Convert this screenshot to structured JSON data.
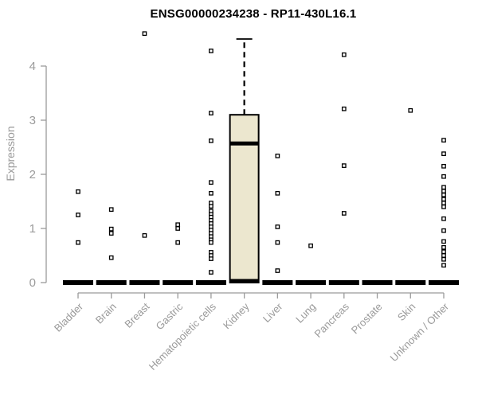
{
  "chart_data": {
    "type": "boxplot",
    "title": "ENSG00000234238 - RP11-430L16.1",
    "xlabel": "",
    "ylabel": "Expression",
    "ylim": [
      0,
      4.6
    ],
    "yticks": [
      0,
      1,
      2,
      3,
      4
    ],
    "categories": [
      "Bladder",
      "Brain",
      "Breast",
      "Gastric",
      "Hematopoietic cells",
      "Kidney",
      "Liver",
      "Lung",
      "Pancreas",
      "Prostate",
      "Skin",
      "Unknown / Other"
    ],
    "boxes": [
      {
        "category": "Bladder",
        "q1": 0,
        "median": 0,
        "q3": 0,
        "whisker_low": 0,
        "whisker_high": 0,
        "outliers": [
          1.68,
          1.25,
          0.74
        ]
      },
      {
        "category": "Brain",
        "q1": 0,
        "median": 0,
        "q3": 0,
        "whisker_low": 0,
        "whisker_high": 0,
        "outliers": [
          1.35,
          0.99,
          0.91,
          0.46
        ]
      },
      {
        "category": "Breast",
        "q1": 0,
        "median": 0,
        "q3": 0,
        "whisker_low": 0,
        "whisker_high": 0,
        "outliers": [
          4.6,
          0.87
        ]
      },
      {
        "category": "Gastric",
        "q1": 0,
        "median": 0,
        "q3": 0,
        "whisker_low": 0,
        "whisker_high": 0,
        "outliers": [
          1.07,
          1.0,
          0.74
        ]
      },
      {
        "category": "Hematopoietic cells",
        "q1": 0,
        "median": 0,
        "q3": 0,
        "whisker_low": 0,
        "whisker_high": 0,
        "outliers": [
          4.28,
          3.13,
          2.62,
          1.85,
          1.65,
          1.47,
          1.41,
          1.32,
          1.26,
          1.21,
          1.15,
          1.09,
          1.03,
          0.97,
          0.91,
          0.85,
          0.79,
          0.74,
          0.56,
          0.5,
          0.44,
          0.19
        ]
      },
      {
        "category": "Kidney",
        "q1": 0,
        "median": 2.57,
        "q3": 3.1,
        "whisker_low": 0,
        "whisker_high": 4.5,
        "outliers": []
      },
      {
        "category": "Liver",
        "q1": 0,
        "median": 0,
        "q3": 0,
        "whisker_low": 0,
        "whisker_high": 0,
        "outliers": [
          2.34,
          1.65,
          1.03,
          0.74,
          0.22
        ]
      },
      {
        "category": "Lung",
        "q1": 0,
        "median": 0,
        "q3": 0,
        "whisker_low": 0,
        "whisker_high": 0,
        "outliers": [
          0.68
        ]
      },
      {
        "category": "Pancreas",
        "q1": 0,
        "median": 0,
        "q3": 0,
        "whisker_low": 0,
        "whisker_high": 0,
        "outliers": [
          4.21,
          3.21,
          2.16,
          1.28
        ]
      },
      {
        "category": "Prostate",
        "q1": 0,
        "median": 0,
        "q3": 0,
        "whisker_low": 0,
        "whisker_high": 0,
        "outliers": []
      },
      {
        "category": "Skin",
        "q1": 0,
        "median": 0,
        "q3": 0,
        "whisker_low": 0,
        "whisker_high": 0,
        "outliers": [
          3.18
        ]
      },
      {
        "category": "Unknown / Other",
        "q1": 0,
        "median": 0,
        "q3": 0,
        "whisker_low": 0,
        "whisker_high": 0,
        "outliers": [
          2.63,
          2.38,
          2.15,
          1.96,
          1.76,
          1.69,
          1.62,
          1.54,
          1.47,
          1.4,
          1.18,
          0.96,
          0.76,
          0.65,
          0.57,
          0.5,
          0.43,
          0.32
        ]
      }
    ],
    "style": {
      "box_fill": "#ece7cf",
      "box_stroke": "#000000",
      "median_color": "#000000",
      "whisker_color": "#000000",
      "outlier_stroke": "#000000",
      "outlier_fill": "#ffffff",
      "axis_color": "#9a9a9a",
      "label_color": "#9a9a9a",
      "title_color": "#000000",
      "marker": "open-square",
      "grid": "off",
      "legend": "none"
    }
  }
}
